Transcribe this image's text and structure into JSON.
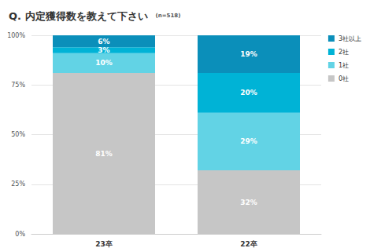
{
  "chart_data": {
    "type": "bar",
    "title": "Q. 内定獲得数を教えて下さい",
    "subtitle": "(n=518)",
    "categories": [
      "23卒",
      "22卒"
    ],
    "stacked": true,
    "data_labels": true,
    "grid": true,
    "legend": "top-right",
    "ylim": [
      0,
      100
    ],
    "yticks": [
      {
        "value": 0,
        "label": "0%"
      },
      {
        "value": 25,
        "label": "25%"
      },
      {
        "value": 50,
        "label": "50%"
      },
      {
        "value": 75,
        "label": "75%"
      },
      {
        "value": 100,
        "label": "100%"
      }
    ],
    "series": [
      {
        "name": "0社",
        "color": "#c6c6c6",
        "values": [
          81,
          32
        ],
        "value_labels": [
          "81%",
          "32%"
        ]
      },
      {
        "name": "1社",
        "color": "#62d3e5",
        "values": [
          10,
          29
        ],
        "value_labels": [
          "10%",
          "29%"
        ]
      },
      {
        "name": "2社",
        "color": "#00b3d6",
        "values": [
          3,
          20
        ],
        "value_labels": [
          "3%",
          "20%"
        ]
      },
      {
        "name": "3社以上",
        "color": "#0b8fba",
        "values": [
          6,
          19
        ],
        "value_labels": [
          "6%",
          "19%"
        ]
      }
    ]
  }
}
